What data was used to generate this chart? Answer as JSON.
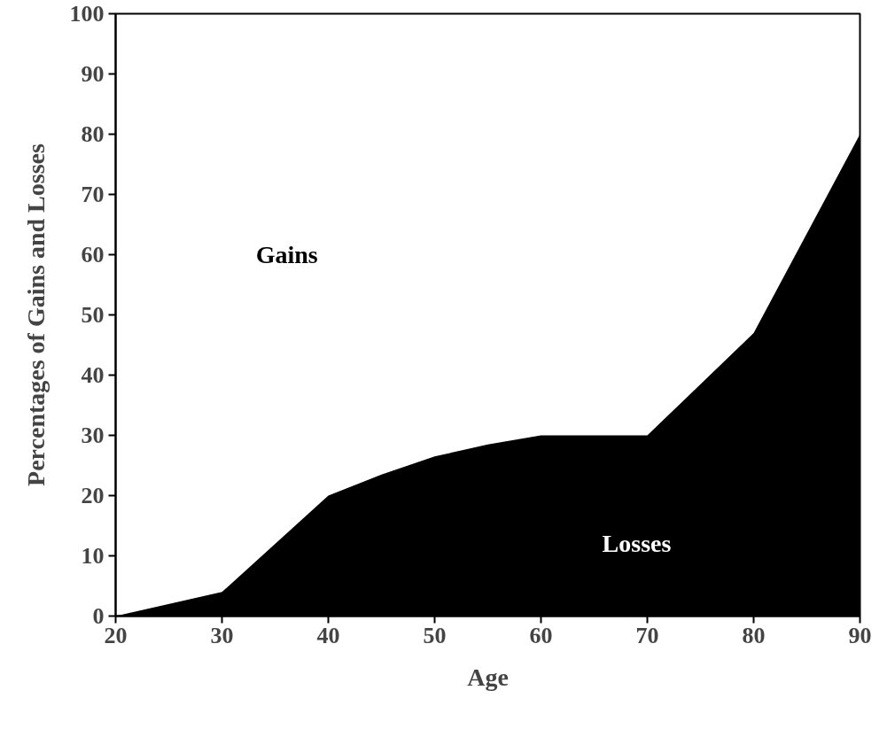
{
  "chart_data": {
    "type": "area",
    "xlabel": "Age",
    "ylabel": "Percentages of Gains and Losses",
    "x": [
      20,
      30,
      40,
      45,
      50,
      55,
      60,
      70,
      80,
      90
    ],
    "series": [
      {
        "color": "#000000",
        "values": [
          0,
          4,
          20,
          23.5,
          26.5,
          28.5,
          30,
          30,
          47,
          80
        ]
      }
    ],
    "xlim": [
      20,
      90
    ],
    "xticks": [
      20,
      30,
      40,
      50,
      60,
      70,
      80,
      90
    ],
    "ylim": [
      0,
      100
    ],
    "yticks": [
      0,
      10,
      20,
      30,
      40,
      50,
      60,
      70,
      80,
      90,
      100
    ],
    "grid": false,
    "annotations": [
      "Gains",
      "Losses"
    ]
  }
}
